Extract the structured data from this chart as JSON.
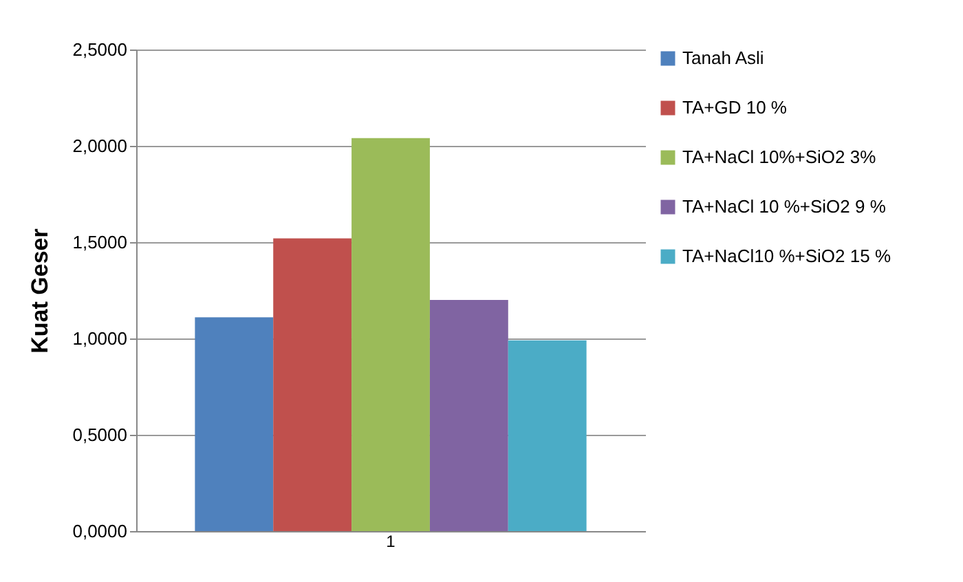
{
  "chart_data": {
    "type": "bar",
    "ylabel": "Kuat Geser",
    "categories": [
      "1"
    ],
    "series": [
      {
        "name": "Tanah Asli",
        "color": "#4f81bd",
        "values": [
          1.11
        ]
      },
      {
        "name": "TA+GD 10 %",
        "color": "#c0504d",
        "values": [
          1.52
        ]
      },
      {
        "name": "TA+NaCl 10%+SiO2 3%",
        "color": "#9bbb59",
        "values": [
          2.04
        ]
      },
      {
        "name": "TA+NaCl 10 %+SiO2 9 %",
        "color": "#8064a2",
        "values": [
          1.2
        ]
      },
      {
        "name": "TA+NaCl10 %+SiO2 15 %",
        "color": "#4bacc6",
        "values": [
          0.99
        ]
      }
    ],
    "ylim": [
      0,
      2.5
    ],
    "yticks": [
      {
        "value": 0,
        "label": "0,0000"
      },
      {
        "value": 0.5,
        "label": "0,5000"
      },
      {
        "value": 1,
        "label": "1,0000"
      },
      {
        "value": 1.5,
        "label": "1,5000"
      },
      {
        "value": 2,
        "label": "2,0000"
      },
      {
        "value": 2.5,
        "label": "2,5000"
      }
    ],
    "grid": "y",
    "legend": "right"
  }
}
